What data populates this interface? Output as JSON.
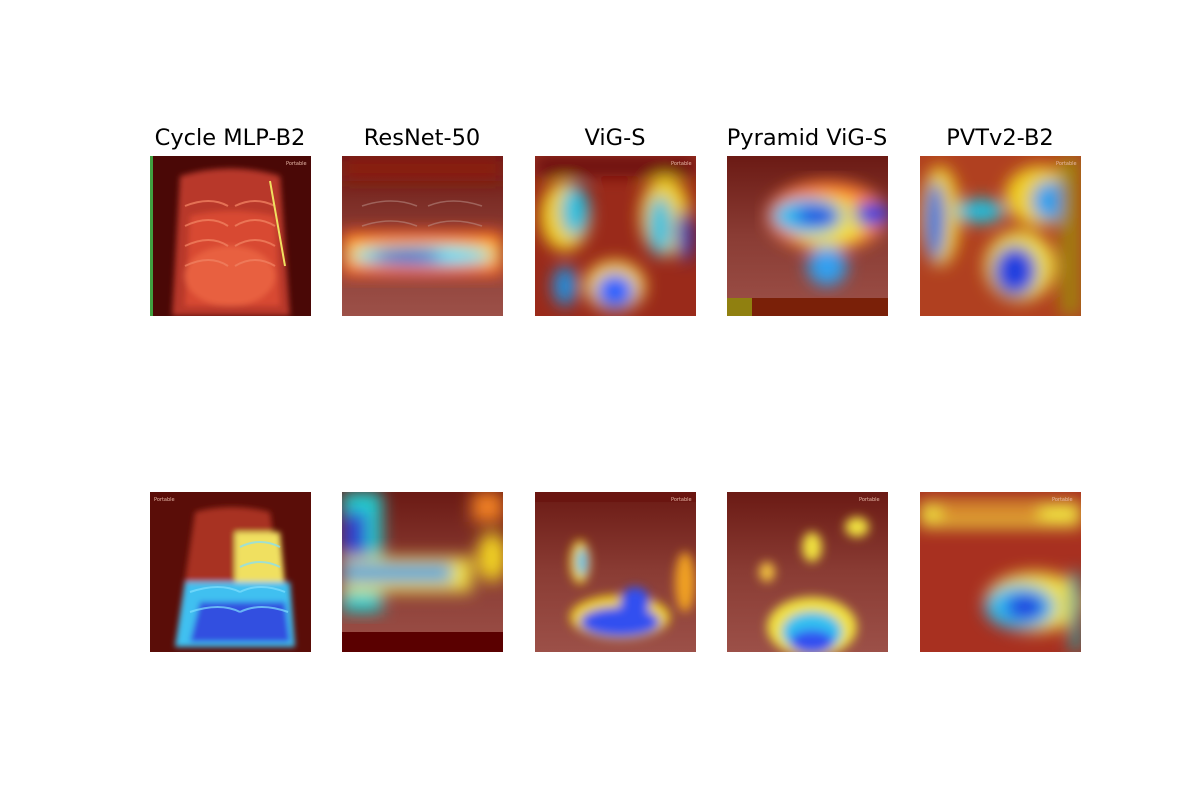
{
  "figure": {
    "columns": [
      {
        "title": "Cycle MLP-B2"
      },
      {
        "title": "ResNet-50"
      },
      {
        "title": "ViG-S"
      },
      {
        "title": "Pyramid ViG-S"
      },
      {
        "title": "PVTv2-B2"
      }
    ],
    "rows": 2,
    "panel_content": "chest X-ray with attention heatmap overlay",
    "colormap": [
      "#00008b",
      "#0050ff",
      "#00d0ff",
      "#7fff7f",
      "#ffff00",
      "#ff8000",
      "#d01010",
      "#5a0d08"
    ]
  }
}
